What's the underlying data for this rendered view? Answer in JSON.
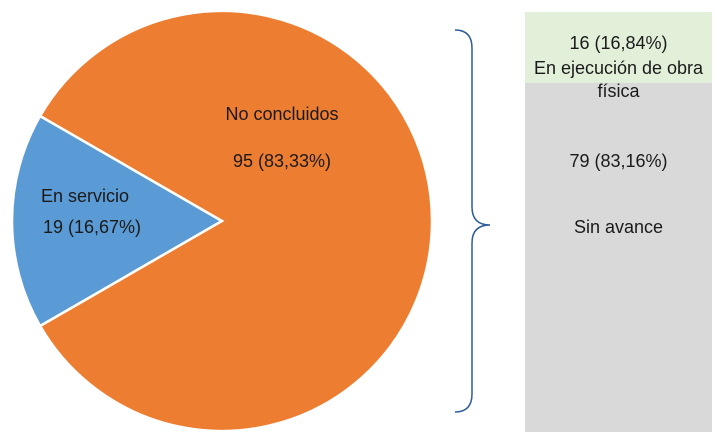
{
  "chart_data": [
    {
      "type": "pie",
      "categories": [
        "En servicio",
        "No concluidos"
      ],
      "values": [
        19,
        95
      ],
      "value_labels": [
        "19 (16,67%)",
        "95 (83,33%)"
      ],
      "colors": [
        "#5b9bd5",
        "#ed7d31"
      ]
    },
    {
      "type": "bar",
      "categories": [
        "En ejecución de obra física",
        "Sin avance"
      ],
      "values": [
        16,
        79
      ],
      "value_labels": [
        "16 (16,84%)",
        "79 (83,16%)"
      ],
      "colors": [
        "#e2efd9",
        "#d9d9d9"
      ]
    }
  ]
}
